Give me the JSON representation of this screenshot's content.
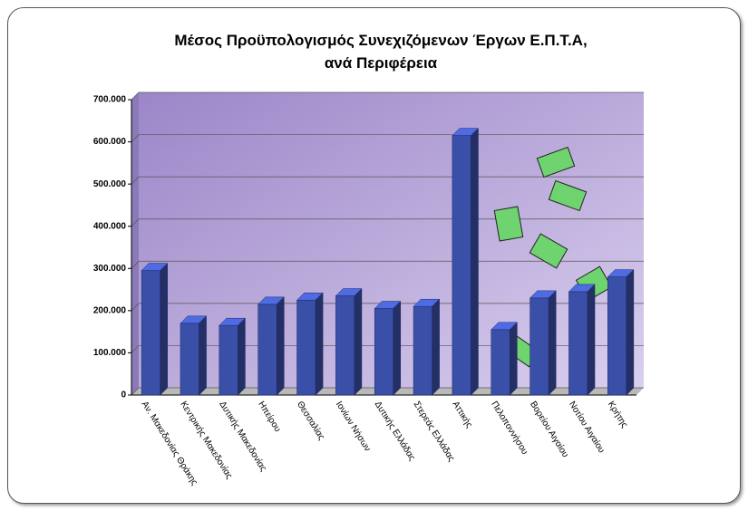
{
  "chart_data": {
    "type": "bar",
    "title": "Μέσος Προϋπολογισμός Συνεχιζόμενων Έργων Ε.Π.Τ.Α, ανά Περιφέρεια",
    "categories": [
      "Αν. Μακεδονίας Θράκης",
      "Κεντρικής Μακεδονίας",
      "Δυτικής Μακεδονίας",
      "Ηπείρου",
      "Θεσσαλίας",
      "Ιονίων Νήσων",
      "Δυτικής Ελλάδας",
      "Στερεάς Ελλάδας",
      "Αττικής",
      "Πελοποννήσου",
      "Βορείου Αιγαίου",
      "Νοτίου Αιγαίου",
      "Κρήτης"
    ],
    "values": [
      295000,
      170000,
      165000,
      215000,
      225000,
      235000,
      205000,
      210000,
      615000,
      155000,
      230000,
      245000,
      280000
    ],
    "color": "#3a4fa8",
    "ylim": [
      0,
      700000
    ],
    "yticks": [
      0,
      {
        "value": 100000,
        "label": "100.000"
      },
      {
        "value": 200000,
        "label": "200.000"
      },
      {
        "value": 300000,
        "label": "300.000"
      },
      {
        "value": 400000,
        "label": "400.000"
      },
      {
        "value": 500000,
        "label": "500.000"
      },
      {
        "value": 600000,
        "label": "600.000"
      },
      {
        "value": 700000,
        "label": "700.000"
      }
    ],
    "grid": true
  }
}
